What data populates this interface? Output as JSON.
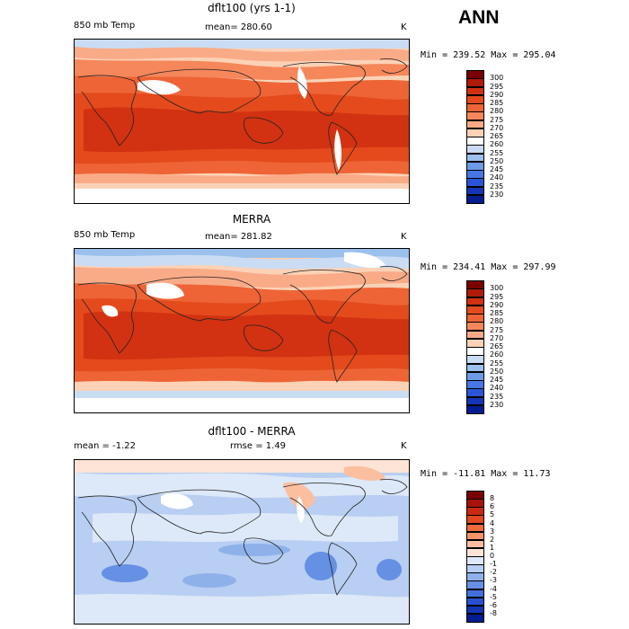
{
  "season": "ANN",
  "panels": [
    {
      "title": "dflt100 (yrs 1-1)",
      "variable": "850 mb Temp",
      "stat_text": "mean= 280.60",
      "units": "K",
      "minmax": "Min = 239.52 Max = 295.04",
      "colorbar": {
        "labels": [
          "300",
          "295",
          "290",
          "285",
          "280",
          "275",
          "270",
          "265",
          "260",
          "255",
          "250",
          "245",
          "240",
          "235",
          "230"
        ],
        "colors": [
          "#7a0000",
          "#b01a0b",
          "#d23211",
          "#e44a1c",
          "#ee6436",
          "#f5875b",
          "#f9ab87",
          "#fcd2b7",
          "#ffffff",
          "#c9dcf3",
          "#9cc0ec",
          "#6c9ce6",
          "#4876e4",
          "#2a55d8",
          "#1336b7",
          "#031c8f"
        ]
      }
    },
    {
      "title": "MERRA",
      "variable": "850 mb Temp",
      "stat_text": "mean= 281.82",
      "units": "K",
      "minmax": "Min = 234.41 Max = 297.99",
      "colorbar": {
        "labels": [
          "300",
          "295",
          "290",
          "285",
          "280",
          "275",
          "270",
          "265",
          "260",
          "255",
          "250",
          "245",
          "240",
          "235",
          "230"
        ],
        "colors": [
          "#7a0000",
          "#b01a0b",
          "#d23211",
          "#e44a1c",
          "#ee6436",
          "#f5875b",
          "#f9ab87",
          "#fcd2b7",
          "#ffffff",
          "#c9dcf3",
          "#9cc0ec",
          "#6c9ce6",
          "#4876e4",
          "#2a55d8",
          "#1336b7",
          "#031c8f"
        ]
      }
    },
    {
      "title": "dflt100 - MERRA",
      "mean_text": "mean =   -1.22",
      "rmse_text": "rmse =    1.49",
      "units": "K",
      "minmax": "Min = -11.81 Max =  11.73",
      "colorbar": {
        "labels": [
          "8",
          "6",
          "5",
          "4",
          "3",
          "2",
          "1",
          "0",
          "-1",
          "-2",
          "-3",
          "-4",
          "-5",
          "-6",
          "-8"
        ],
        "colors": [
          "#7a0000",
          "#a6140a",
          "#c92a12",
          "#e2471f",
          "#ef6a3d",
          "#f69469",
          "#fbbfa0",
          "#fde4d6",
          "#dde8f8",
          "#b8cef2",
          "#8fb1ea",
          "#6690e3",
          "#4270de",
          "#2851d1",
          "#1236b0",
          "#031c8f"
        ]
      }
    }
  ]
}
